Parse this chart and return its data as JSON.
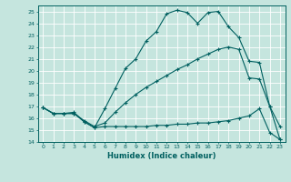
{
  "xlabel": "Humidex (Indice chaleur)",
  "background_color": "#c5e5de",
  "line_color": "#006060",
  "grid_color": "#afd4cc",
  "xlim": [
    -0.5,
    23.5
  ],
  "ylim": [
    14,
    25.5
  ],
  "yticks": [
    14,
    15,
    16,
    17,
    18,
    19,
    20,
    21,
    22,
    23,
    24,
    25
  ],
  "xticks": [
    0,
    1,
    2,
    3,
    4,
    5,
    6,
    7,
    8,
    9,
    10,
    11,
    12,
    13,
    14,
    15,
    16,
    17,
    18,
    19,
    20,
    21,
    22,
    23
  ],
  "series1_x": [
    0,
    1,
    2,
    3,
    4,
    5,
    6,
    7,
    8,
    9,
    10,
    11,
    12,
    13,
    14,
    15,
    16,
    17,
    18,
    19,
    20,
    21,
    22,
    23
  ],
  "series1_y": [
    16.9,
    16.4,
    16.4,
    16.5,
    15.7,
    15.2,
    16.8,
    18.5,
    20.2,
    21.0,
    22.5,
    23.3,
    24.8,
    25.1,
    24.9,
    24.0,
    24.9,
    25.0,
    23.7,
    22.8,
    20.8,
    20.7,
    17.0,
    15.3
  ],
  "series2_x": [
    0,
    1,
    2,
    3,
    4,
    5,
    6,
    7,
    8,
    9,
    10,
    11,
    12,
    13,
    14,
    15,
    16,
    17,
    18,
    19,
    20,
    21,
    22,
    23
  ],
  "series2_y": [
    16.9,
    16.4,
    16.4,
    16.4,
    15.8,
    15.3,
    15.6,
    16.5,
    17.3,
    18.0,
    18.6,
    19.1,
    19.6,
    20.1,
    20.5,
    21.0,
    21.4,
    21.8,
    22.0,
    21.8,
    19.4,
    19.3,
    17.0,
    14.2
  ],
  "series3_x": [
    0,
    1,
    2,
    3,
    4,
    5,
    6,
    7,
    8,
    9,
    10,
    11,
    12,
    13,
    14,
    15,
    16,
    17,
    18,
    19,
    20,
    21,
    22,
    23
  ],
  "series3_y": [
    16.9,
    16.4,
    16.4,
    16.4,
    15.7,
    15.2,
    15.3,
    15.3,
    15.3,
    15.3,
    15.3,
    15.4,
    15.4,
    15.5,
    15.5,
    15.6,
    15.6,
    15.7,
    15.8,
    16.0,
    16.2,
    16.8,
    14.8,
    14.2
  ]
}
